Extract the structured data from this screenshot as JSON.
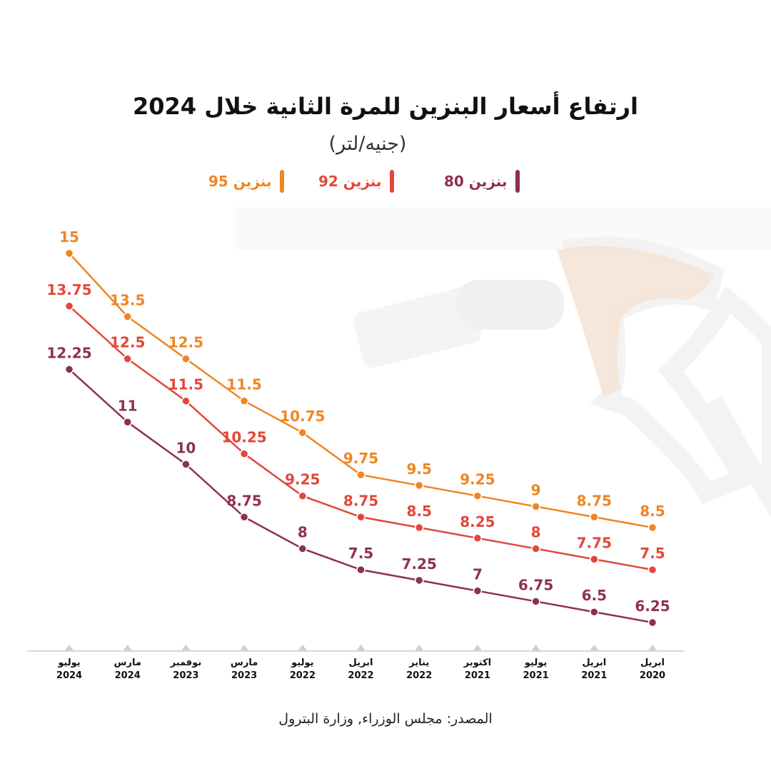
{
  "title": "ارتفاع أسعار البنزين للمرة الثانية خلال 2024",
  "subtitle": "(جنيه/لتر)",
  "source": "المصدر: مجلس الوزراء, وزارة البترول",
  "colors": {
    "b95": "#EE8624",
    "b92": "#E2483A",
    "b80": "#8E2F56",
    "axis": "#cccccc",
    "marker": "#d0d0d0"
  },
  "chart_data": {
    "type": "line",
    "categories": [
      [
        "يوليو",
        "2024"
      ],
      [
        "مارس",
        "2024"
      ],
      [
        "نوفمبر",
        "2023"
      ],
      [
        "مارس",
        "2023"
      ],
      [
        "يوليو",
        "2022"
      ],
      [
        "ابريل",
        "2022"
      ],
      [
        "يناير",
        "2022"
      ],
      [
        "اكتوبر",
        "2021"
      ],
      [
        "يوليو",
        "2021"
      ],
      [
        "ابريل",
        "2021"
      ],
      [
        "ابريل",
        "2020"
      ]
    ],
    "series": [
      {
        "name": "بنزين 95",
        "color": "#EE8624",
        "values": [
          15,
          13.5,
          12.5,
          11.5,
          10.75,
          9.75,
          9.5,
          9.25,
          9,
          8.75,
          8.5
        ]
      },
      {
        "name": "بنزين 92",
        "color": "#E2483A",
        "values": [
          13.75,
          12.5,
          11.5,
          10.25,
          9.25,
          8.75,
          8.5,
          8.25,
          8,
          7.75,
          7.5
        ]
      },
      {
        "name": "بنزين 80",
        "color": "#8E2F56",
        "values": [
          12.25,
          11,
          10,
          8.75,
          8,
          7.5,
          7.25,
          7,
          6.75,
          6.5,
          6.25
        ]
      }
    ],
    "ylim": [
      6,
      15
    ],
    "grid": false,
    "legend_position": "top"
  }
}
